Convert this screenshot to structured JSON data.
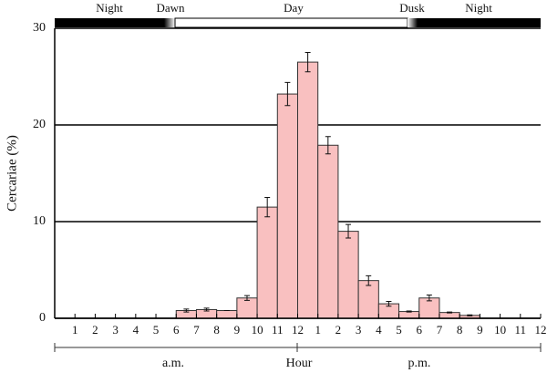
{
  "chart_data": {
    "type": "histogram",
    "y_label": "Cercariae (%)",
    "x_label": "Hour",
    "period_labels": [
      "a.m.",
      "p.m."
    ],
    "phase_labels": [
      "Night",
      "Dawn",
      "Day",
      "Dusk",
      "Night"
    ],
    "bins": [
      6,
      7,
      8,
      9,
      10,
      11,
      12,
      13,
      14,
      15,
      16,
      17,
      18,
      19,
      20,
      21
    ],
    "values": [
      0.8,
      0.9,
      0.8,
      2.1,
      11.5,
      23.2,
      26.5,
      17.9,
      9.0,
      3.9,
      1.5,
      0.7,
      2.1,
      0.6,
      0.3
    ],
    "errors": [
      0.15,
      0.15,
      0,
      0.25,
      1.0,
      1.2,
      1.0,
      0.9,
      0.7,
      0.5,
      0.25,
      0.05,
      0.3,
      0.05,
      0.05
    ],
    "color": "#f9c0c0",
    "xlim": [
      0,
      24
    ],
    "xticks": [
      1,
      2,
      3,
      4,
      5,
      6,
      7,
      8,
      9,
      10,
      11,
      12,
      {
        "value": 13,
        "label": "1"
      },
      {
        "value": 14,
        "label": "2"
      },
      {
        "value": 15,
        "label": "3"
      },
      {
        "value": 16,
        "label": "4"
      },
      {
        "value": 17,
        "label": "5"
      },
      {
        "value": 18,
        "label": "6"
      },
      {
        "value": 19,
        "label": "7"
      },
      {
        "value": 20,
        "label": "8"
      },
      {
        "value": 21,
        "label": "9"
      },
      {
        "value": 22,
        "label": "10"
      },
      {
        "value": 23,
        "label": "11"
      },
      {
        "value": 24,
        "label": "12"
      }
    ],
    "ylim": [
      0,
      30
    ],
    "yticks": [
      0,
      10,
      20,
      30
    ],
    "grid": true
  }
}
